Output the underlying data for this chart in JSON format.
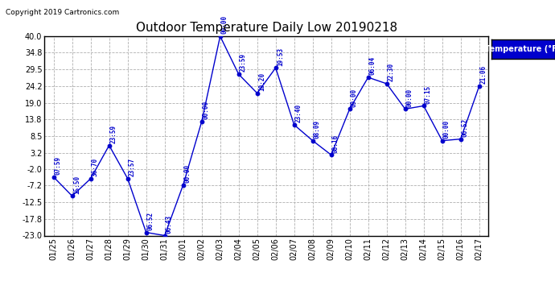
{
  "title": "Outdoor Temperature Daily Low 20190218",
  "copyright": "Copyright 2019 Cartronics.com",
  "legend_label": "Temperature (°F)",
  "dates": [
    "01/25",
    "01/26",
    "01/27",
    "01/28",
    "01/29",
    "01/30",
    "01/31",
    "02/01",
    "02/02",
    "02/03",
    "02/04",
    "02/05",
    "02/06",
    "02/07",
    "02/08",
    "02/09",
    "02/10",
    "02/11",
    "02/12",
    "02/13",
    "02/14",
    "02/15",
    "02/16",
    "02/17"
  ],
  "values": [
    -4.5,
    -10.5,
    -5.0,
    5.5,
    -5.0,
    -22.0,
    -23.0,
    -7.0,
    13.0,
    40.0,
    28.0,
    22.0,
    30.0,
    12.0,
    7.0,
    2.5,
    17.0,
    27.0,
    25.0,
    17.0,
    18.0,
    7.0,
    7.5,
    24.2
  ],
  "time_labels": [
    "07:59",
    "15:50",
    "36:70",
    "23:59",
    "23:57",
    "06:52",
    "06:43",
    "00:00",
    "00:00",
    "00:00",
    "23:59",
    "10:20",
    "19:53",
    "23:40",
    "08:09",
    "08:16",
    "09:00",
    "06:04",
    "22:30",
    "00:00",
    "07:15",
    "00:00",
    "06:52",
    "21:06"
  ],
  "ylim": [
    -23.0,
    40.0
  ],
  "yticks": [
    40.0,
    34.8,
    29.5,
    24.2,
    19.0,
    13.8,
    8.5,
    3.2,
    -2.0,
    -7.2,
    -12.5,
    -17.8,
    -23.0
  ],
  "line_color": "#0000CD",
  "marker_color": "#0000CD",
  "bg_color": "#ffffff",
  "plot_bg_color": "#ffffff",
  "grid_color": "#b0b0b0",
  "title_color": "#000000",
  "label_color": "#0000CD",
  "legend_bg": "#0000CD",
  "legend_text_color": "#ffffff",
  "border_color": "#000000",
  "title_fontsize": 11,
  "copyright_fontsize": 6.5,
  "tick_fontsize": 7,
  "annot_fontsize": 5.5
}
